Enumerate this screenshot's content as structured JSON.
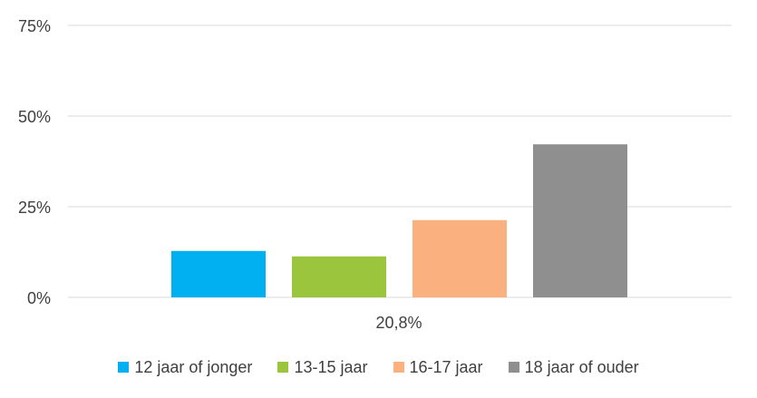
{
  "chart_data": {
    "type": "bar",
    "categories": [
      "20,8%"
    ],
    "series": [
      {
        "name": "12 jaar of jonger",
        "values": [
          12.8
        ],
        "color": "#00b0f0"
      },
      {
        "name": "13-15 jaar",
        "values": [
          11.3
        ],
        "color": "#9bc53d"
      },
      {
        "name": "16-17 jaar",
        "values": [
          21.3
        ],
        "color": "#fbb080"
      },
      {
        "name": "18 jaar of ouder",
        "values": [
          42.2
        ],
        "color": "#8f8f8f"
      }
    ],
    "yticks": [
      0,
      25,
      50,
      75
    ],
    "ytick_labels": [
      "0%",
      "25%",
      "50%",
      "75%"
    ],
    "ylim": [
      0,
      75
    ],
    "grid": true,
    "legend_position": "bottom"
  }
}
